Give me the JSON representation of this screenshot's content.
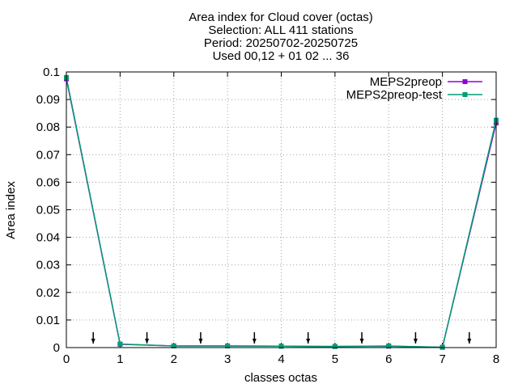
{
  "chart_data": {
    "type": "line",
    "title_lines": [
      "Area index  for Cloud cover (octas)",
      "Selection: ALL    411 stations",
      "Period: 20250702-20250725",
      "Used 00,12 + 01 02 ... 36"
    ],
    "xlabel": "classes octas",
    "ylabel": "Area index",
    "xlim": [
      0,
      8
    ],
    "ylim": [
      0,
      0.1
    ],
    "x_ticks": [
      "0",
      "1",
      "2",
      "3",
      "4",
      "5",
      "6",
      "7",
      "8"
    ],
    "y_ticks": [
      "0",
      "0.01",
      "0.02",
      "0.03",
      "0.04",
      "0.05",
      "0.06",
      "0.07",
      "0.08",
      "0.09",
      "0.1"
    ],
    "grid": true,
    "legend_position": "top-right",
    "x": [
      0,
      1,
      2,
      3,
      4,
      5,
      6,
      7,
      8
    ],
    "series": [
      {
        "name": "MEPS2preop",
        "color": "#9400d3",
        "values": [
          0.0975,
          0.0012,
          0.0006,
          0.0006,
          0.0005,
          0.0004,
          0.0005,
          0.0001,
          0.0815
        ]
      },
      {
        "name": "MEPS2preop-test",
        "color": "#009e73",
        "values": [
          0.098,
          0.0013,
          0.0006,
          0.0006,
          0.0005,
          0.0004,
          0.0006,
          0.0001,
          0.0825
        ]
      }
    ],
    "markers_x": [
      0.5,
      1.5,
      2.5,
      3.5,
      4.5,
      5.5,
      6.5,
      7.5
    ]
  }
}
